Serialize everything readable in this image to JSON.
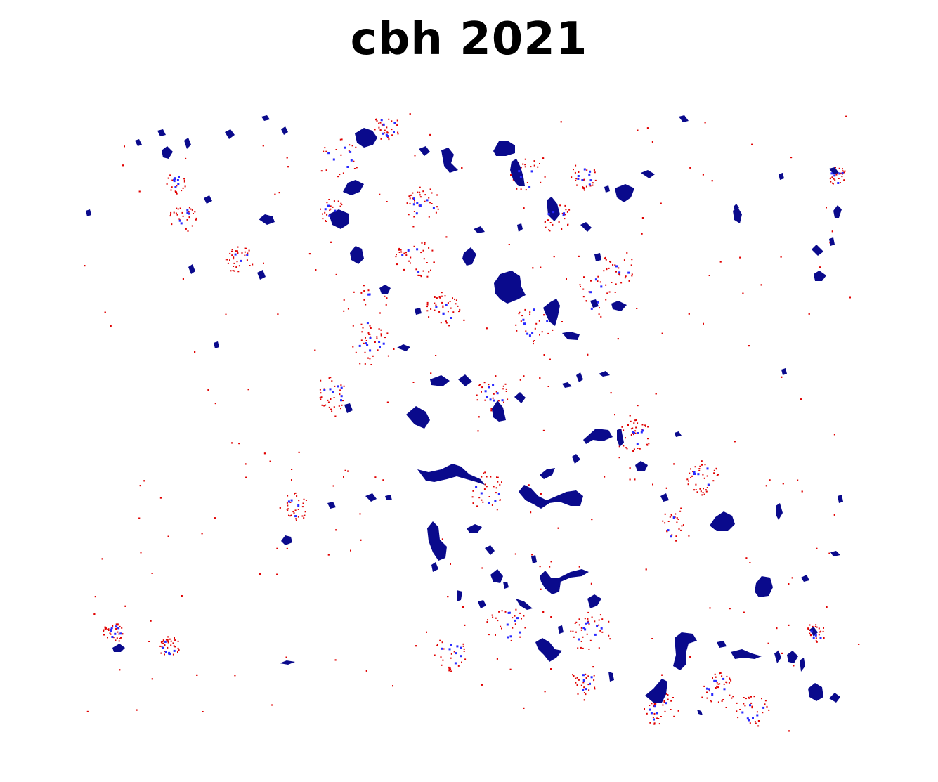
{
  "figure": {
    "title": "cbh 2021"
  },
  "legend_colors": {
    "patch_core": "#0a0a8c",
    "patch_edge": "#2a2aff",
    "scatter": "#e00000",
    "background": "#ffffff"
  },
  "map": {
    "type": "raster",
    "axes": "off",
    "grid": false,
    "legend": "none"
  }
}
